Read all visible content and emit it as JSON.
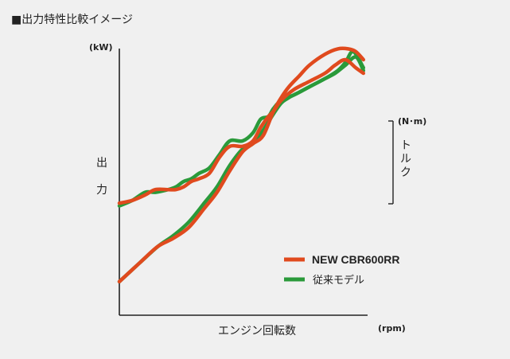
{
  "chart_data": {
    "type": "line",
    "title": "■出力特性比較イメージ",
    "ylabel": "出力",
    "xlabel": "エンジン回転数",
    "y_unit": "(kW)",
    "x_unit": "(rpm)",
    "secondary_ylabel": "トルク",
    "secondary_y_unit": "(N･m)",
    "x_range": [
      0,
      100
    ],
    "y_range": [
      0,
      100
    ],
    "grid": false,
    "legend_position": "bottom-right",
    "series": [
      {
        "name": "NEW CBR600RR",
        "color": "#e04a1e",
        "power": {
          "x": [
            0,
            8,
            15,
            21,
            27,
            33,
            38,
            43,
            48,
            52,
            56,
            60,
            63,
            66,
            70,
            74,
            80,
            85,
            89,
            92,
            95
          ],
          "y": [
            13,
            20,
            26,
            29,
            33,
            40,
            46,
            54,
            61,
            64,
            67,
            76,
            81,
            85,
            89,
            93,
            97,
            99,
            99,
            98,
            95
          ]
        },
        "torque": {
          "x": [
            0,
            5,
            10,
            14,
            19,
            22,
            25,
            28,
            31,
            35,
            39,
            43,
            48,
            52,
            55,
            58,
            60,
            63,
            68,
            74,
            80,
            84,
            88,
            92,
            95
          ],
          "y": [
            42,
            43,
            45,
            47,
            47,
            47,
            48,
            50,
            51,
            53,
            59,
            63,
            63,
            65,
            70,
            74,
            76,
            80,
            84,
            87,
            90,
            93,
            95,
            92,
            90
          ]
        }
      },
      {
        "name": "従来モデル",
        "color": "#2a9a3a",
        "power": {
          "x": [
            0,
            8,
            15,
            21,
            27,
            33,
            38,
            43,
            48,
            52,
            56,
            60,
            63,
            66,
            70,
            74,
            80,
            85,
            88,
            91,
            95
          ],
          "y": [
            13,
            20,
            26,
            30,
            35,
            42,
            48,
            56,
            62,
            64,
            69,
            75,
            79,
            81,
            83,
            85,
            88,
            91,
            94,
            98,
            92
          ]
        },
        "torque": {
          "x": [
            0,
            5,
            10,
            14,
            19,
            22,
            25,
            28,
            31,
            35,
            39,
            43,
            48,
            52,
            55,
            58,
            60,
            63,
            68,
            74,
            80,
            84,
            88,
            92,
            95
          ],
          "y": [
            41,
            43,
            46,
            46,
            47,
            48,
            50,
            51,
            53,
            55,
            60,
            65,
            65,
            68,
            73,
            74,
            77,
            80,
            82,
            85,
            88,
            90,
            93,
            96,
            91
          ]
        }
      }
    ]
  }
}
